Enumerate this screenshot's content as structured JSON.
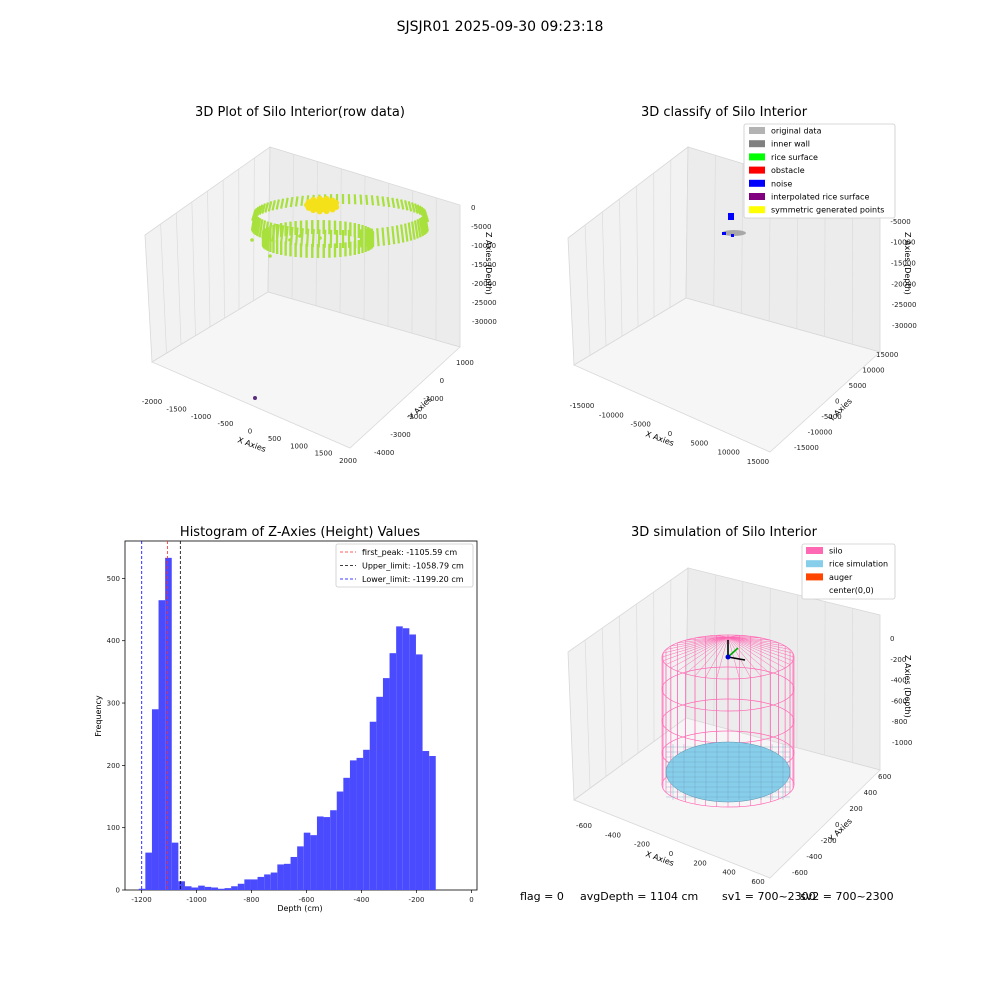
{
  "suptitle": "SJSJR01 2025-09-30 09:23:18",
  "status": {
    "flag": "flag = 0",
    "avg": "avgDepth = 1104 cm",
    "sv1": "sv1 = 700~2300",
    "sv2": "sv2 = 700~2300"
  },
  "colors": {
    "raw_points": "#a8e03c",
    "raw_top": "#f5e11a",
    "hist_bar": "#4a4aff",
    "peak_line": "#ff2a2a",
    "upper_line": "#000000",
    "lower_line": "#0000ff",
    "silo": "#ff69b4",
    "rice": "#87ceeb",
    "auger": "#ff4500"
  },
  "chart_data": [
    {
      "type": "scatter",
      "title": "3D Plot of Silo Interior(row data)",
      "xlabel": "X Axies",
      "ylabel": "Y Axies",
      "zlabel": "Z Axies (Depth)",
      "x_ticks": [
        "-2000",
        "-1500",
        "-1000",
        "-500",
        "0",
        "500",
        "1000",
        "1500",
        "2000"
      ],
      "y_ticks": [
        "1000",
        "0",
        "-1000",
        "-2000",
        "-3000",
        "-4000"
      ],
      "z_ticks": [
        "0",
        "-5000",
        "-10000",
        "-15000",
        "-20000",
        "-25000",
        "-30000"
      ],
      "xlim": [
        -2000,
        2000
      ],
      "ylim": [
        -4000,
        1000
      ],
      "zlim": [
        -32000,
        0
      ],
      "grid": true
    },
    {
      "type": "scatter",
      "title": "3D classify of Silo Interior",
      "xlabel": "X Axies",
      "ylabel": "Y Axies",
      "zlabel": "Z Axies (Depth)",
      "x_ticks": [
        "-15000",
        "-10000",
        "-5000",
        "0",
        "5000",
        "10000",
        "15000"
      ],
      "y_ticks": [
        "15000",
        "10000",
        "5000",
        "0",
        "-5000",
        "-10000",
        "-15000"
      ],
      "z_ticks": [
        "0",
        "-5000",
        "-10000",
        "-15000",
        "-20000",
        "-25000",
        "-30000"
      ],
      "legend": [
        {
          "label": "original data",
          "color": "#b3b3b3"
        },
        {
          "label": "inner wall",
          "color": "#808080"
        },
        {
          "label": "rice surface",
          "color": "#00ff00"
        },
        {
          "label": "obstacle",
          "color": "#ff0000"
        },
        {
          "label": "noise",
          "color": "#0000ff"
        },
        {
          "label": "interpolated rice surface",
          "color": "#800080"
        },
        {
          "label": "symmetric generated points",
          "color": "#ffff00"
        }
      ],
      "legend_position": "top-right",
      "grid": true
    },
    {
      "type": "bar",
      "title": "Histogram of Z-Axies (Height) Values",
      "xlabel": "Depth (cm)",
      "ylabel": "Frequency",
      "xlim": [
        -1260,
        20
      ],
      "ylim": [
        0,
        560
      ],
      "x_ticks": [
        -1200,
        -1000,
        -800,
        -600,
        -400,
        -200,
        0
      ],
      "y_ticks": [
        0,
        100,
        200,
        300,
        400,
        500
      ],
      "bin_width": 24,
      "bin_start": -1210,
      "values": [
        2,
        60,
        290,
        465,
        533,
        76,
        14,
        6,
        4,
        7,
        5,
        4,
        2,
        3,
        6,
        10,
        17,
        17,
        21,
        25,
        28,
        41,
        42,
        53,
        70,
        92,
        88,
        118,
        117,
        128,
        158,
        180,
        208,
        212,
        225,
        270,
        310,
        340,
        380,
        423,
        420,
        410,
        378,
        223,
        215
      ],
      "vlines": [
        {
          "label": "first_peak: -1105.59 cm",
          "x": -1105.59,
          "style": "peak"
        },
        {
          "label": "Upper_limit: -1058.79 cm",
          "x": -1058.79,
          "style": "upper"
        },
        {
          "label": "Lower_limit: -1199.20 cm",
          "x": -1199.2,
          "style": "lower"
        }
      ],
      "legend_position": "top-right"
    },
    {
      "type": "scatter",
      "title": "3D simulation of Silo Interior",
      "xlabel": "X Axies",
      "ylabel": "Y Axies",
      "zlabel": "Z Axies (Depth)",
      "x_ticks": [
        "-600",
        "-400",
        "-200",
        "0",
        "200",
        "400",
        "600"
      ],
      "y_ticks": [
        "600",
        "400",
        "200",
        "0",
        "-200",
        "-400",
        "-600"
      ],
      "z_ticks": [
        "0",
        "-200",
        "-400",
        "-600",
        "-800",
        "-1000"
      ],
      "legend": [
        {
          "label": "silo",
          "color": "#ff69b4"
        },
        {
          "label": "rice simulation",
          "color": "#87ceeb"
        },
        {
          "label": "auger",
          "color": "#ff4500"
        },
        {
          "label": "center(0,0)",
          "color": ""
        }
      ],
      "legend_position": "top-right",
      "grid": true
    }
  ]
}
